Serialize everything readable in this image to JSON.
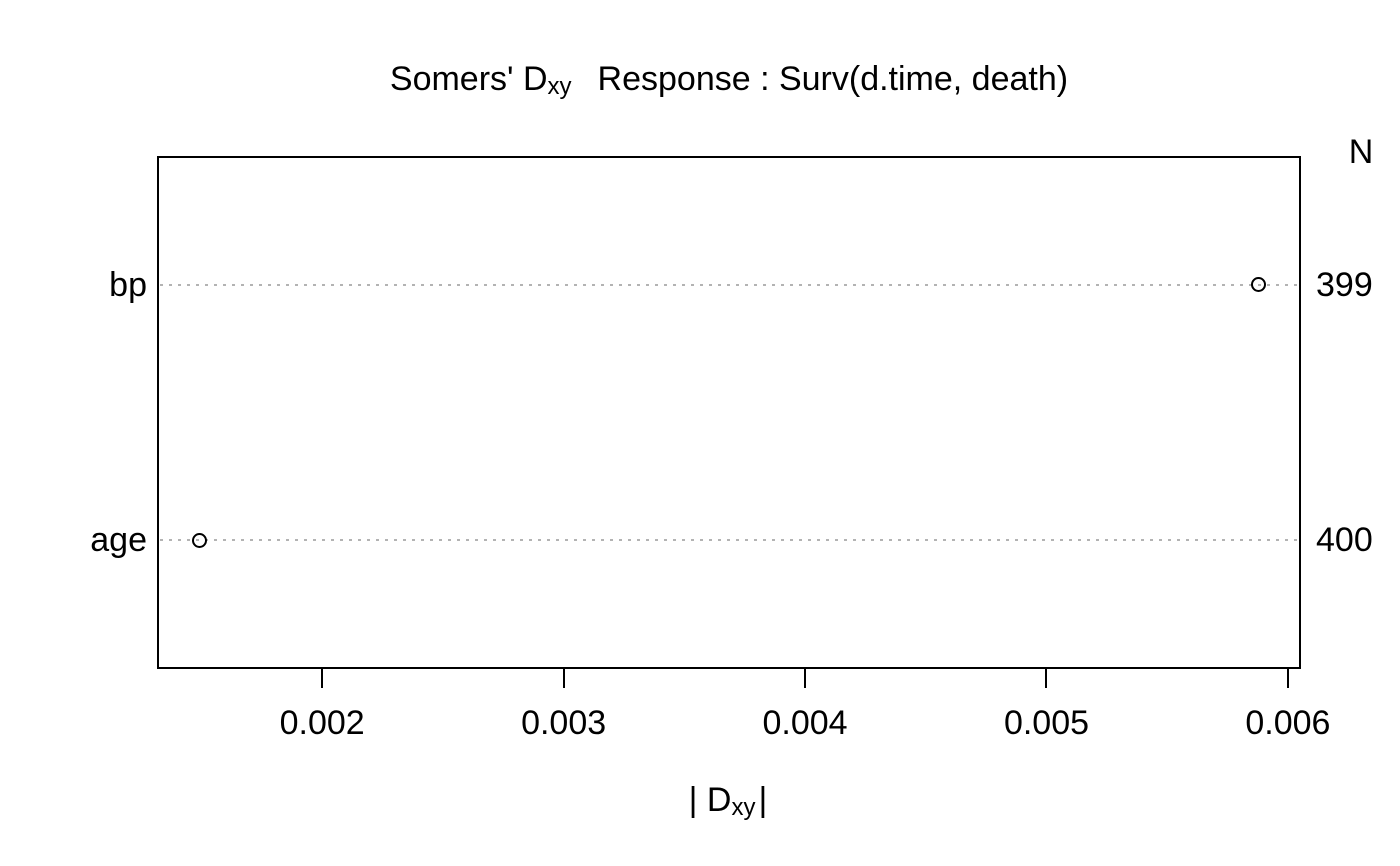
{
  "title": {
    "part1": "Somers' D",
    "part1_sub": "xy",
    "part2": "Response : Surv(d.time, death)"
  },
  "n_column": {
    "header": "N"
  },
  "x_axis_title": {
    "part1": "| D",
    "sub": "xy",
    "part2": "|"
  },
  "chart_data": {
    "type": "scatter",
    "title": "Somers' Dxy    Response : Surv(d.time, death)",
    "xlabel": "|Dxy|",
    "right_column_header": "N",
    "xlim": [
      0.00132,
      0.00605
    ],
    "x_ticks": [
      0.002,
      0.003,
      0.004,
      0.005,
      0.006
    ],
    "x_tick_labels": [
      "0.002",
      "0.003",
      "0.004",
      "0.005",
      "0.006"
    ],
    "ylim": [
      0.5,
      2.5
    ],
    "grid": "dotted horizontal reference line across plot at each category row",
    "categories": [
      "bp",
      "age"
    ],
    "points": [
      {
        "label": "bp",
        "x": 0.00588,
        "y": 2,
        "n": 399
      },
      {
        "label": "age",
        "x": 0.00149,
        "y": 1,
        "n": 400
      }
    ],
    "colors": {
      "point_stroke": "#000000",
      "dotted_line": "#b3b3b3",
      "axis": "#000000",
      "text": "#000000",
      "background": "#ffffff"
    }
  }
}
